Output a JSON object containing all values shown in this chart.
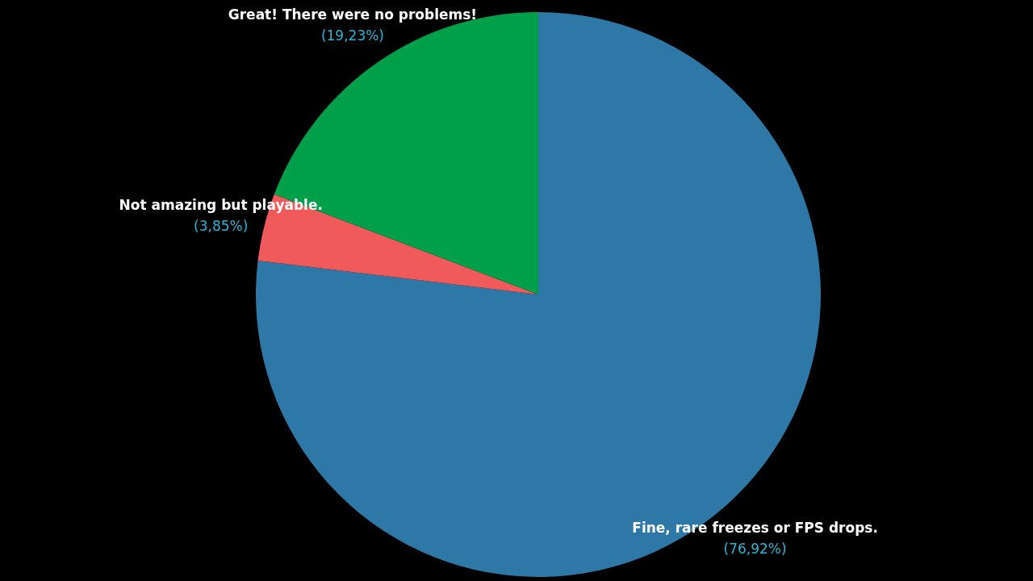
{
  "chart_data": {
    "type": "pie",
    "categories": [
      "Fine, rare freezes or FPS drops.",
      "Not amazing but playable.",
      "Great! There were no problems!"
    ],
    "values": [
      76.92,
      3.85,
      19.23
    ],
    "colors": [
      "#2e78a8",
      "#f05a5a",
      "#00a04a"
    ],
    "value_labels": [
      "(76,92%)",
      "(3,85%)",
      "(19,23%)"
    ]
  }
}
